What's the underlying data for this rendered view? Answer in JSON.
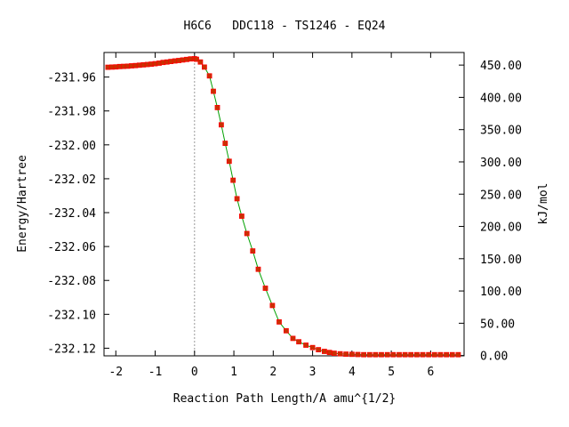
{
  "chart_data": {
    "type": "line",
    "title": "H6C6   DDC118 - TS1246 - EQ24",
    "xlabel": "Reaction Path Length/A amu^{1/2}",
    "ylabel_left": "Energy/Hartree",
    "ylabel_right": "kJ/mol",
    "xlim": [
      -2.3,
      6.85
    ],
    "ylim": [
      -232.1245,
      -231.9455
    ],
    "right_ylim": [
      -0.5,
      469.5
    ],
    "x_ticks": [
      -2,
      -1,
      0,
      1,
      2,
      3,
      4,
      5,
      6
    ],
    "x_tick_labels": [
      "-2",
      "-1",
      "0",
      "1",
      "2",
      "3",
      "4",
      "5",
      "6"
    ],
    "y_ticks": [
      -231.96,
      -231.98,
      -232.0,
      -232.02,
      -232.04,
      -232.06,
      -232.08,
      -232.1,
      -232.12
    ],
    "y_tick_labels": [
      "-231.96",
      "-231.98",
      "-232.00",
      "-232.02",
      "-232.04",
      "-232.06",
      "-232.08",
      "-232.10",
      "-232.12"
    ],
    "right_ticks": [
      0,
      50,
      100,
      150,
      200,
      250,
      300,
      350,
      400,
      450
    ],
    "right_tick_labels": [
      "0.00",
      "50.00",
      "100.00",
      "150.00",
      "200.00",
      "250.00",
      "300.00",
      "350.00",
      "400.00",
      "450.00"
    ],
    "ts_marker_x": 0,
    "grid": false,
    "colors": {
      "line": "#00a000",
      "marker_fill": "#c83200",
      "marker_stroke": "#ff0000",
      "ts_line": "#999999"
    },
    "series": [
      {
        "x": [
          -2.2,
          -2.1,
          -2.0,
          -1.9,
          -1.8,
          -1.7,
          -1.6,
          -1.5,
          -1.4,
          -1.3,
          -1.2,
          -1.1,
          -1.0,
          -0.9,
          -0.8,
          -0.7,
          -0.6,
          -0.5,
          -0.4,
          -0.3,
          -0.2,
          -0.1,
          0.0,
          0.05,
          0.15,
          0.25,
          0.38,
          0.48,
          0.58,
          0.68,
          0.78,
          0.88,
          0.98,
          1.08,
          1.2,
          1.33,
          1.48,
          1.62,
          1.8,
          1.98,
          2.15,
          2.33,
          2.5,
          2.65,
          2.83,
          3.0,
          3.15,
          3.3,
          3.43,
          3.55,
          3.7,
          3.85,
          4.0,
          4.15,
          4.3,
          4.45,
          4.6,
          4.75,
          4.9,
          5.05,
          5.2,
          5.35,
          5.5,
          5.65,
          5.8,
          5.95,
          6.1,
          6.25,
          6.4,
          6.55,
          6.7
        ],
        "y": [
          -231.9542,
          -231.9541,
          -231.954,
          -231.9538,
          -231.9537,
          -231.9536,
          -231.9534,
          -231.9532,
          -231.953,
          -231.9528,
          -231.9526,
          -231.9524,
          -231.9521,
          -231.9518,
          -231.9514,
          -231.9511,
          -231.9508,
          -231.9505,
          -231.9502,
          -231.9499,
          -231.9496,
          -231.9493,
          -231.9492,
          -231.9495,
          -231.9511,
          -231.9541,
          -231.9593,
          -231.9684,
          -231.978,
          -231.9882,
          -231.9991,
          -232.0097,
          -232.0209,
          -232.0318,
          -232.0421,
          -232.0523,
          -232.0626,
          -232.0734,
          -232.0846,
          -232.0948,
          -232.1045,
          -232.1097,
          -232.1142,
          -232.1162,
          -232.1182,
          -232.1196,
          -232.1209,
          -232.1219,
          -232.1225,
          -232.123,
          -232.1233,
          -232.1235,
          -232.1236,
          -232.1237,
          -232.1238,
          -232.1238,
          -232.1238,
          -232.1238,
          -232.1238,
          -232.1238,
          -232.1238,
          -232.1238,
          -232.1238,
          -232.1238,
          -232.1238,
          -232.1238,
          -232.1238,
          -232.1238,
          -232.1238,
          -232.1238,
          -232.1238
        ]
      }
    ]
  }
}
